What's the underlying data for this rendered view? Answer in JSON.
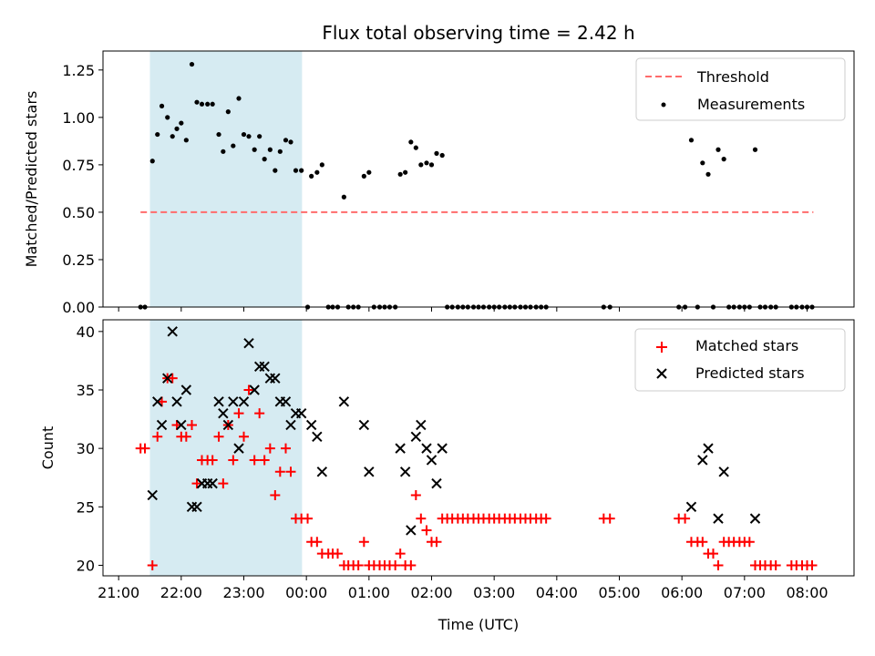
{
  "title": "Flux total observing time = 2.42 h",
  "chart_data": {
    "type": "scatter",
    "title": "Flux total observing time = 2.42 h",
    "xlabel": "Time (UTC)",
    "x_tick_labels": [
      "21:00",
      "22:00",
      "23:00",
      "00:00",
      "01:00",
      "02:00",
      "03:00",
      "04:00",
      "05:00",
      "06:00",
      "07:00",
      "08:00"
    ],
    "x_tick_hours": [
      0,
      1,
      2,
      3,
      4,
      5,
      6,
      7,
      8,
      9,
      10,
      11
    ],
    "x_axis_note": "x values are hours after 21:00 UTC",
    "xlim": [
      -0.25,
      11.75
    ],
    "shaded_region": [
      0.5,
      2.93
    ],
    "colors": {
      "threshold": "#ff6b6b",
      "measurements": "#000000",
      "matched": "#ff0000",
      "predicted": "#000000",
      "shade": "#add8e6"
    },
    "top": {
      "ylabel": "Matched/Predicted stars",
      "ylim": [
        0,
        1.35
      ],
      "y_ticks": [
        "0.00",
        "0.25",
        "0.50",
        "0.75",
        "1.00",
        "1.25"
      ],
      "y_tick_values": [
        0,
        0.25,
        0.5,
        0.75,
        1.0,
        1.25
      ],
      "legend": {
        "threshold": "Threshold",
        "measurements": "Measurements"
      },
      "threshold": {
        "value": 0.5,
        "x_range": [
          0.35,
          11.1
        ]
      },
      "measurements": [
        [
          0.35,
          0
        ],
        [
          0.42,
          0
        ],
        [
          0.54,
          0.77
        ],
        [
          0.62,
          0.91
        ],
        [
          0.69,
          1.06
        ],
        [
          0.78,
          1.0
        ],
        [
          0.86,
          0.9
        ],
        [
          0.93,
          0.94
        ],
        [
          1.0,
          0.97
        ],
        [
          1.08,
          0.88
        ],
        [
          1.17,
          1.28
        ],
        [
          1.25,
          1.08
        ],
        [
          1.33,
          1.07
        ],
        [
          1.42,
          1.07
        ],
        [
          1.5,
          1.07
        ],
        [
          1.6,
          0.91
        ],
        [
          1.67,
          0.82
        ],
        [
          1.75,
          1.03
        ],
        [
          1.83,
          0.85
        ],
        [
          1.92,
          1.1
        ],
        [
          2.0,
          0.91
        ],
        [
          2.08,
          0.9
        ],
        [
          2.17,
          0.83
        ],
        [
          2.25,
          0.9
        ],
        [
          2.33,
          0.78
        ],
        [
          2.42,
          0.83
        ],
        [
          2.5,
          0.72
        ],
        [
          2.58,
          0.82
        ],
        [
          2.67,
          0.88
        ],
        [
          2.75,
          0.87
        ],
        [
          2.83,
          0.72
        ],
        [
          2.92,
          0.72
        ],
        [
          3.02,
          0
        ],
        [
          3.08,
          0.69
        ],
        [
          3.17,
          0.71
        ],
        [
          3.25,
          0.75
        ],
        [
          3.35,
          0
        ],
        [
          3.42,
          0
        ],
        [
          3.5,
          0
        ],
        [
          3.6,
          0.58
        ],
        [
          3.67,
          0
        ],
        [
          3.75,
          0
        ],
        [
          3.83,
          0
        ],
        [
          3.92,
          0.69
        ],
        [
          4.0,
          0.71
        ],
        [
          4.08,
          0
        ],
        [
          4.17,
          0
        ],
        [
          4.25,
          0
        ],
        [
          4.33,
          0
        ],
        [
          4.42,
          0
        ],
        [
          4.5,
          0.7
        ],
        [
          4.58,
          0.71
        ],
        [
          4.67,
          0.87
        ],
        [
          4.75,
          0.84
        ],
        [
          4.83,
          0.75
        ],
        [
          4.92,
          0.76
        ],
        [
          5.0,
          0.75
        ],
        [
          5.08,
          0.81
        ],
        [
          5.17,
          0.8
        ],
        [
          5.25,
          0
        ],
        [
          5.33,
          0
        ],
        [
          5.42,
          0
        ],
        [
          5.5,
          0
        ],
        [
          5.58,
          0
        ],
        [
          5.67,
          0
        ],
        [
          5.75,
          0
        ],
        [
          5.83,
          0
        ],
        [
          5.92,
          0
        ],
        [
          6.0,
          0
        ],
        [
          6.08,
          0
        ],
        [
          6.17,
          0
        ],
        [
          6.25,
          0
        ],
        [
          6.33,
          0
        ],
        [
          6.42,
          0
        ],
        [
          6.5,
          0
        ],
        [
          6.58,
          0
        ],
        [
          6.67,
          0
        ],
        [
          6.75,
          0
        ],
        [
          6.83,
          0
        ],
        [
          7.75,
          0
        ],
        [
          7.85,
          0
        ],
        [
          8.95,
          0
        ],
        [
          9.05,
          0
        ],
        [
          9.15,
          0.88
        ],
        [
          9.25,
          0
        ],
        [
          9.33,
          0.76
        ],
        [
          9.42,
          0.7
        ],
        [
          9.5,
          0
        ],
        [
          9.58,
          0.83
        ],
        [
          9.67,
          0.78
        ],
        [
          9.75,
          0
        ],
        [
          9.83,
          0
        ],
        [
          9.92,
          0
        ],
        [
          10.0,
          0
        ],
        [
          10.08,
          0
        ],
        [
          10.17,
          0.83
        ],
        [
          10.25,
          0
        ],
        [
          10.33,
          0
        ],
        [
          10.42,
          0
        ],
        [
          10.5,
          0
        ],
        [
          10.75,
          0
        ],
        [
          10.83,
          0
        ],
        [
          10.92,
          0
        ],
        [
          11.0,
          0
        ],
        [
          11.08,
          0
        ]
      ]
    },
    "bottom": {
      "ylabel": "Count",
      "ylim": [
        19.1,
        41
      ],
      "y_ticks": [
        "20",
        "25",
        "30",
        "35",
        "40"
      ],
      "y_tick_values": [
        20,
        25,
        30,
        35,
        40
      ],
      "legend": {
        "matched": "Matched stars",
        "predicted": "Predicted stars"
      },
      "matched": [
        [
          0.35,
          30
        ],
        [
          0.42,
          30
        ],
        [
          0.54,
          20
        ],
        [
          0.62,
          31
        ],
        [
          0.69,
          34
        ],
        [
          0.78,
          36
        ],
        [
          0.86,
          36
        ],
        [
          0.93,
          32
        ],
        [
          1.0,
          31
        ],
        [
          1.08,
          31
        ],
        [
          1.17,
          32
        ],
        [
          1.25,
          27
        ],
        [
          1.33,
          29
        ],
        [
          1.42,
          29
        ],
        [
          1.5,
          29
        ],
        [
          1.6,
          31
        ],
        [
          1.67,
          27
        ],
        [
          1.75,
          32
        ],
        [
          1.83,
          29
        ],
        [
          1.92,
          33
        ],
        [
          2.0,
          31
        ],
        [
          2.08,
          35
        ],
        [
          2.17,
          29
        ],
        [
          2.25,
          33
        ],
        [
          2.33,
          29
        ],
        [
          2.42,
          30
        ],
        [
          2.5,
          26
        ],
        [
          2.58,
          28
        ],
        [
          2.67,
          30
        ],
        [
          2.75,
          28
        ],
        [
          2.83,
          24
        ],
        [
          2.92,
          24
        ],
        [
          3.02,
          24
        ],
        [
          3.08,
          22
        ],
        [
          3.17,
          22
        ],
        [
          3.25,
          21
        ],
        [
          3.35,
          21
        ],
        [
          3.42,
          21
        ],
        [
          3.5,
          21
        ],
        [
          3.6,
          20
        ],
        [
          3.67,
          20
        ],
        [
          3.75,
          20
        ],
        [
          3.83,
          20
        ],
        [
          3.92,
          22
        ],
        [
          4.0,
          20
        ],
        [
          4.08,
          20
        ],
        [
          4.17,
          20
        ],
        [
          4.25,
          20
        ],
        [
          4.33,
          20
        ],
        [
          4.42,
          20
        ],
        [
          4.5,
          21
        ],
        [
          4.58,
          20
        ],
        [
          4.67,
          20
        ],
        [
          4.75,
          26
        ],
        [
          4.83,
          24
        ],
        [
          4.92,
          23
        ],
        [
          5.0,
          22
        ],
        [
          5.08,
          22
        ],
        [
          5.17,
          24
        ],
        [
          5.25,
          24
        ],
        [
          5.33,
          24
        ],
        [
          5.42,
          24
        ],
        [
          5.5,
          24
        ],
        [
          5.58,
          24
        ],
        [
          5.67,
          24
        ],
        [
          5.75,
          24
        ],
        [
          5.83,
          24
        ],
        [
          5.92,
          24
        ],
        [
          6.0,
          24
        ],
        [
          6.08,
          24
        ],
        [
          6.17,
          24
        ],
        [
          6.25,
          24
        ],
        [
          6.33,
          24
        ],
        [
          6.42,
          24
        ],
        [
          6.5,
          24
        ],
        [
          6.58,
          24
        ],
        [
          6.67,
          24
        ],
        [
          6.75,
          24
        ],
        [
          6.83,
          24
        ],
        [
          7.75,
          24
        ],
        [
          7.85,
          24
        ],
        [
          8.95,
          24
        ],
        [
          9.05,
          24
        ],
        [
          9.15,
          22
        ],
        [
          9.25,
          22
        ],
        [
          9.33,
          22
        ],
        [
          9.42,
          21
        ],
        [
          9.5,
          21
        ],
        [
          9.58,
          20
        ],
        [
          9.67,
          22
        ],
        [
          9.75,
          22
        ],
        [
          9.83,
          22
        ],
        [
          9.92,
          22
        ],
        [
          10.0,
          22
        ],
        [
          10.08,
          22
        ],
        [
          10.17,
          20
        ],
        [
          10.25,
          20
        ],
        [
          10.33,
          20
        ],
        [
          10.42,
          20
        ],
        [
          10.5,
          20
        ],
        [
          10.75,
          20
        ],
        [
          10.83,
          20
        ],
        [
          10.92,
          20
        ],
        [
          11.0,
          20
        ],
        [
          11.08,
          20
        ]
      ],
      "predicted": [
        [
          0.54,
          26
        ],
        [
          0.62,
          34
        ],
        [
          0.69,
          32
        ],
        [
          0.78,
          36
        ],
        [
          0.86,
          40
        ],
        [
          0.93,
          34
        ],
        [
          1.0,
          32
        ],
        [
          1.08,
          35
        ],
        [
          1.17,
          25
        ],
        [
          1.25,
          25
        ],
        [
          1.33,
          27
        ],
        [
          1.42,
          27
        ],
        [
          1.5,
          27
        ],
        [
          1.6,
          34
        ],
        [
          1.67,
          33
        ],
        [
          1.75,
          32
        ],
        [
          1.83,
          34
        ],
        [
          1.92,
          30
        ],
        [
          2.0,
          34
        ],
        [
          2.08,
          39
        ],
        [
          2.17,
          35
        ],
        [
          2.25,
          37
        ],
        [
          2.33,
          37
        ],
        [
          2.42,
          36
        ],
        [
          2.5,
          36
        ],
        [
          2.58,
          34
        ],
        [
          2.67,
          34
        ],
        [
          2.75,
          32
        ],
        [
          2.83,
          33
        ],
        [
          2.92,
          33
        ],
        [
          3.08,
          32
        ],
        [
          3.17,
          31
        ],
        [
          3.25,
          28
        ],
        [
          3.6,
          34
        ],
        [
          3.92,
          32
        ],
        [
          4.0,
          28
        ],
        [
          4.5,
          30
        ],
        [
          4.58,
          28
        ],
        [
          4.67,
          23
        ],
        [
          4.75,
          31
        ],
        [
          4.83,
          32
        ],
        [
          4.92,
          30
        ],
        [
          5.0,
          29
        ],
        [
          5.08,
          27
        ],
        [
          5.17,
          30
        ],
        [
          9.15,
          25
        ],
        [
          9.33,
          29
        ],
        [
          9.42,
          30
        ],
        [
          9.58,
          24
        ],
        [
          9.67,
          28
        ],
        [
          10.17,
          24
        ]
      ]
    }
  }
}
